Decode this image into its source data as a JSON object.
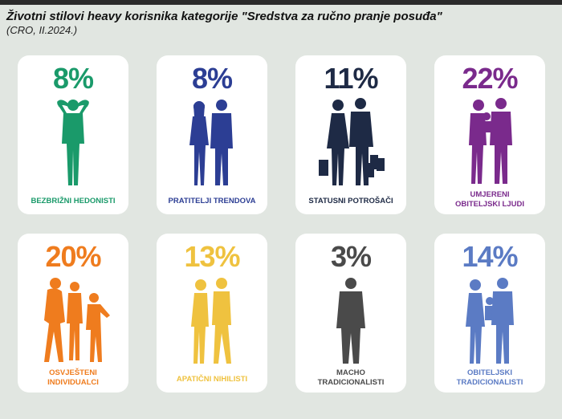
{
  "title": "Životni stilovi heavy korisnika kategorije \"Sredstva za ručno pranje posuđa\"",
  "subtitle": "(CRO, II.2024.)",
  "cards": [
    {
      "pct": "8%",
      "label1": "BEZBRIŽNI HEDONISTI",
      "label2": "",
      "color": "#1a9a6a",
      "icon": "relaxed-man-icon"
    },
    {
      "pct": "8%",
      "label1": "PRATITELJI TRENDOVA",
      "label2": "",
      "color": "#2c3e94",
      "icon": "couple-icon"
    },
    {
      "pct": "11%",
      "label1": "STATUSNI POTROŠAČI",
      "label2": "",
      "color": "#1e2a45",
      "icon": "shopping-couple-icon"
    },
    {
      "pct": "22%",
      "label1": "UMJERENI",
      "label2": "OBITELJSKI LJUDI",
      "color": "#7a2a8c",
      "icon": "family-icon"
    },
    {
      "pct": "20%",
      "label1": "OSVJEŠTENI",
      "label2": "INDIVIDUALCI",
      "color": "#ef7c1e",
      "icon": "walking-group-icon"
    },
    {
      "pct": "13%",
      "label1": "APATIČNI NIHILISTI",
      "label2": "",
      "color": "#efc23f",
      "icon": "back-to-back-couple-icon"
    },
    {
      "pct": "3%",
      "label1": "MACHO",
      "label2": "TRADICIONALISTI",
      "color": "#4a4a4a",
      "icon": "suited-man-icon"
    },
    {
      "pct": "14%",
      "label1": "OBITELJSKI",
      "label2": "TRADICIONALISTI",
      "color": "#5b7bc4",
      "icon": "traditional-family-icon"
    }
  ]
}
